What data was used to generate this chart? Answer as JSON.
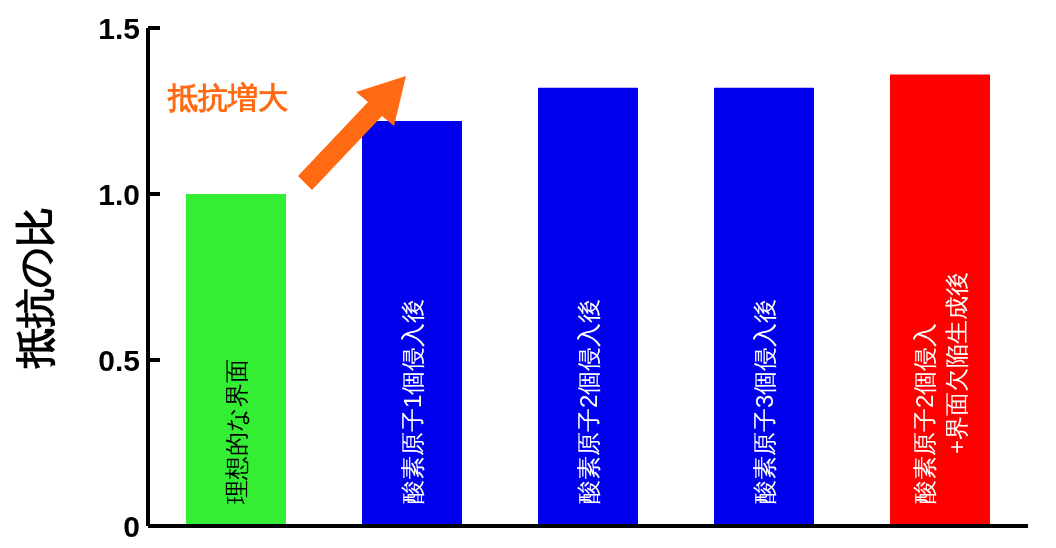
{
  "chart_data": {
    "type": "bar",
    "ylabel": "抵抗の比",
    "categories": [
      "理想的な界面",
      "酸素原子1個侵入後",
      "酸素原子2個侵入後",
      "酸素原子3個侵入後",
      "酸素原子2個侵入\n+界面欠陥生成後"
    ],
    "values": [
      1.0,
      1.22,
      1.32,
      1.32,
      1.36
    ],
    "colors": [
      "#33ee33",
      "#0000ee",
      "#0000ee",
      "#0000ee",
      "#ff0000"
    ],
    "ylim": [
      0,
      1.5
    ],
    "yticks": [
      0,
      {
        "value": 0.5,
        "label": "0.5"
      },
      {
        "value": 1,
        "label": "1.0"
      },
      1.5
    ],
    "annotations": [
      "抵抗増大"
    ],
    "grid": false,
    "legend": false
  }
}
